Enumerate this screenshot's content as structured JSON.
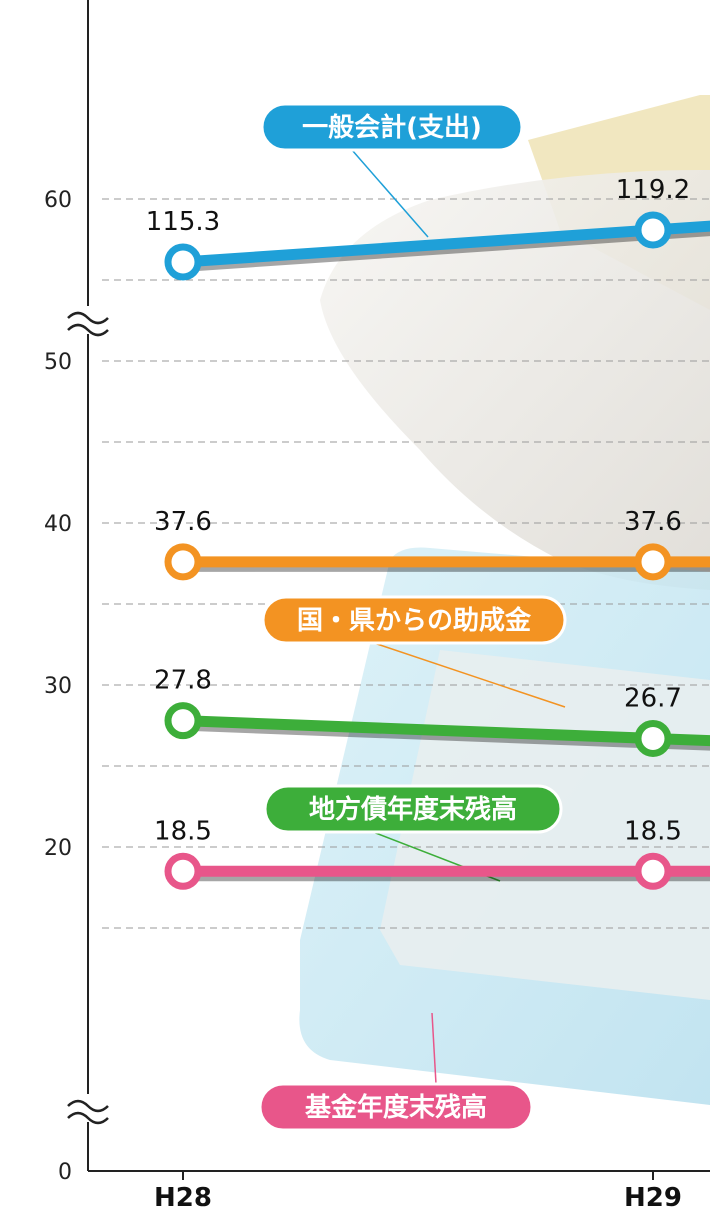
{
  "chart_data": {
    "type": "line",
    "categories": [
      "H28",
      "H29"
    ],
    "y_ticks": [
      "0",
      "20",
      "30",
      "40",
      "50",
      "60"
    ],
    "axis_breaks": [
      15,
      62
    ],
    "grid": true,
    "series": [
      {
        "name": "一般会計(支出)",
        "values": [
          115.3,
          119.2
        ],
        "color": "#1fa0d8"
      },
      {
        "name": "国・県からの助成金",
        "values": [
          37.6,
          37.6
        ],
        "color": "#f39322"
      },
      {
        "name": "地方債年度末残高",
        "values": [
          27.8,
          26.7
        ],
        "color": "#3dae3a"
      },
      {
        "name": "基金年度末残高",
        "values": [
          18.5,
          18.5
        ],
        "color": "#e8568a"
      }
    ]
  },
  "background": {
    "photo_1": "tissue-paper-package",
    "photo_2": "tablet-with-blue-case",
    "photo_1_color": "#eceae6",
    "photo_2_color": "#c9e8f2"
  }
}
